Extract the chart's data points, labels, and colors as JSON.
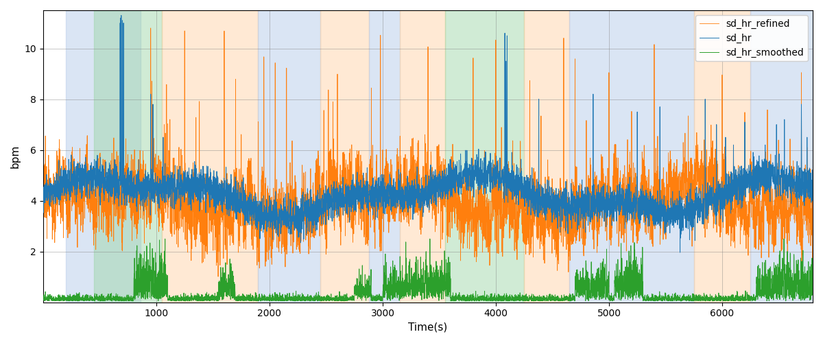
{
  "xlabel": "Time(s)",
  "ylabel": "bpm",
  "ylim": [
    0,
    11.5
  ],
  "yticks": [
    2,
    4,
    6,
    8,
    10
  ],
  "xlim": [
    0,
    6800
  ],
  "xticks": [
    1000,
    2000,
    3000,
    4000,
    5000,
    6000
  ],
  "figsize": [
    12,
    5
  ],
  "dpi": 100,
  "legend_labels": [
    "sd_hr",
    "sd_hr_refined",
    "sd_hr_smoothed"
  ],
  "line_colors": [
    "#1f77b4",
    "#ff7f0e",
    "#2ca02c"
  ],
  "shading_regions": [
    {
      "start": 200,
      "end": 860,
      "color": "#aec6e8",
      "alpha": 0.45
    },
    {
      "start": 450,
      "end": 1050,
      "color": "#98d4a3",
      "alpha": 0.45
    },
    {
      "start": 1050,
      "end": 1900,
      "color": "#ffcfa0",
      "alpha": 0.45
    },
    {
      "start": 1900,
      "end": 2450,
      "color": "#aec6e8",
      "alpha": 0.45
    },
    {
      "start": 2450,
      "end": 2880,
      "color": "#ffcfa0",
      "alpha": 0.45
    },
    {
      "start": 2880,
      "end": 3150,
      "color": "#aec6e8",
      "alpha": 0.45
    },
    {
      "start": 3150,
      "end": 3550,
      "color": "#ffcfa0",
      "alpha": 0.45
    },
    {
      "start": 3550,
      "end": 4250,
      "color": "#98d4a3",
      "alpha": 0.45
    },
    {
      "start": 4250,
      "end": 4650,
      "color": "#ffcfa0",
      "alpha": 0.45
    },
    {
      "start": 4650,
      "end": 5750,
      "color": "#aec6e8",
      "alpha": 0.45
    },
    {
      "start": 5750,
      "end": 6250,
      "color": "#ffcfa0",
      "alpha": 0.45
    },
    {
      "start": 6250,
      "end": 6800,
      "color": "#aec6e8",
      "alpha": 0.45
    }
  ],
  "seed": 42,
  "n_points": 6800,
  "t_max": 6800
}
